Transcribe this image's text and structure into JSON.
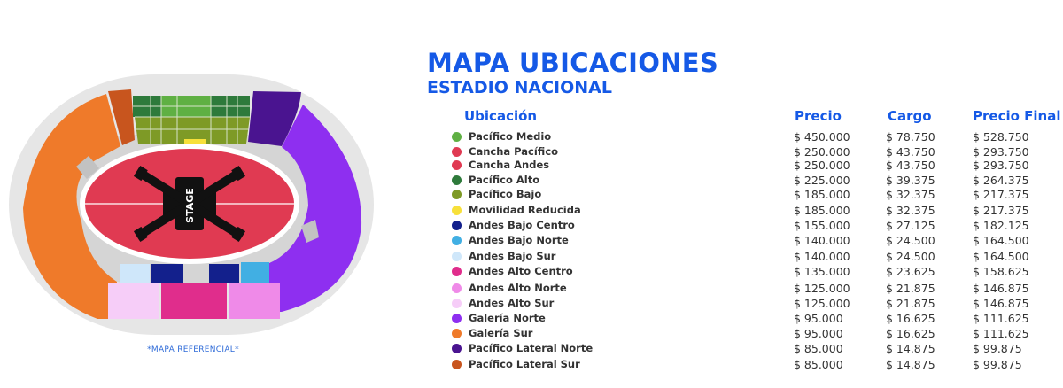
{
  "header": {
    "title": "MAPA UBICACIONES",
    "subtitle": "ESTADIO NACIONAL"
  },
  "map": {
    "stage_label": "STAGE",
    "note": "*MAPA REFERENCIAL*"
  },
  "table": {
    "columns": {
      "location": "Ubicación",
      "price": "Precio",
      "cargo": "Cargo",
      "final": "Precio Final"
    },
    "rows": [
      {
        "name": "Pacífico Medio",
        "color": "#5fb043",
        "price": "$ 450.000",
        "cargo": "$ 78.750",
        "final": "$ 528.750"
      },
      {
        "name": "Cancha Pacífico",
        "color": "#e03a52",
        "price": "$ 250.000",
        "cargo": "$ 43.750",
        "final": "$ 293.750"
      },
      {
        "name": "Cancha Andes",
        "color": "#e03a52",
        "price": "$ 250.000",
        "cargo": "$ 43.750",
        "final": "$ 293.750"
      },
      {
        "name": "Pacífico Alto",
        "color": "#2e7a3b",
        "price": "$ 225.000",
        "cargo": "$ 39.375",
        "final": "$ 264.375"
      },
      {
        "name": "Pacífico Bajo",
        "color": "#7e9a26",
        "price": "$ 185.000",
        "cargo": "$ 32.375",
        "final": "$ 217.375"
      },
      {
        "name": "Movilidad Reducida",
        "color": "#f7e03a",
        "price": "$ 185.000",
        "cargo": "$ 32.375",
        "final": "$ 217.375"
      },
      {
        "name": "Andes Bajo Centro",
        "color": "#13208c",
        "price": "$ 155.000",
        "cargo": "$ 27.125",
        "final": "$ 182.125"
      },
      {
        "name": "Andes Bajo Norte",
        "color": "#41afe3",
        "price": "$ 140.000",
        "cargo": "$ 24.500",
        "final": "$ 164.500"
      },
      {
        "name": "Andes Bajo Sur",
        "color": "#cfe7fa",
        "price": "$ 140.000",
        "cargo": "$ 24.500",
        "final": "$ 164.500"
      },
      {
        "name": "Andes Alto Centro",
        "color": "#e02d8c",
        "price": "$ 135.000",
        "cargo": "$ 23.625",
        "final": "$ 158.625"
      },
      {
        "name": "Andes Alto Norte",
        "color": "#ef8ae8",
        "price": "$ 125.000",
        "cargo": "$ 21.875",
        "final": "$ 146.875"
      },
      {
        "name": "Andes Alto Sur",
        "color": "#f6cdf8",
        "price": "$ 125.000",
        "cargo": "$ 21.875",
        "final": "$ 146.875"
      },
      {
        "name": "Galería Norte",
        "color": "#8e2ff0",
        "price": "$ 95.000",
        "cargo": "$ 16.625",
        "final": "$ 111.625"
      },
      {
        "name": "Galería Sur",
        "color": "#ef7a2a",
        "price": "$ 95.000",
        "cargo": "$ 16.625",
        "final": "$ 111.625"
      },
      {
        "name": "Pacífico Lateral Norte",
        "color": "#4a1490",
        "price": "$ 85.000",
        "cargo": "$ 14.875",
        "final": "$ 99.875"
      },
      {
        "name": "Pacífico Lateral Sur",
        "color": "#c8551e",
        "price": "$ 85.000",
        "cargo": "$ 14.875",
        "final": "$ 99.875"
      }
    ]
  }
}
